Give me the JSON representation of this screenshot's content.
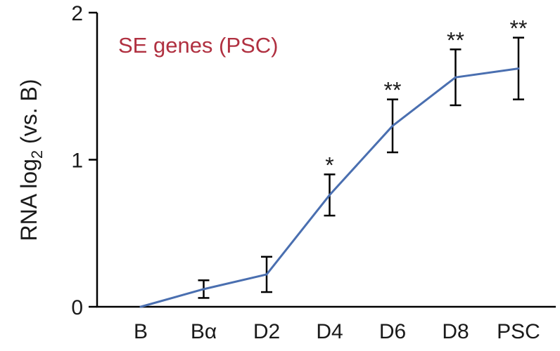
{
  "chart_data": {
    "type": "line",
    "title": "SE genes (PSC)",
    "title_color": "#b03040",
    "ylabel": {
      "main": "RNA log",
      "subscript": "2",
      "suffix": " (vs. B)"
    },
    "xlabel": "",
    "categories": [
      "B",
      "Bα",
      "D2",
      "D4",
      "D6",
      "D8",
      "PSC"
    ],
    "series": [
      {
        "color": "#4a6fb0",
        "values": [
          0.0,
          0.12,
          0.22,
          0.76,
          1.23,
          1.56,
          1.62
        ],
        "error": [
          0.0,
          0.06,
          0.12,
          0.14,
          0.18,
          0.19,
          0.21
        ]
      }
    ],
    "significance": [
      "",
      "",
      "",
      "*",
      "**",
      "**",
      "**"
    ],
    "ylim": [
      0,
      2
    ],
    "yticks": [
      0,
      1,
      2
    ],
    "ytick_labels": [
      "0",
      "1",
      "2"
    ],
    "grid": false,
    "legend": "none"
  }
}
